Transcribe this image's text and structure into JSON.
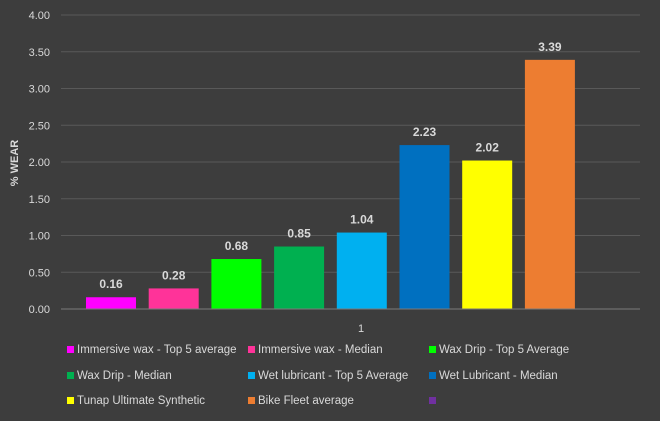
{
  "chart_data": {
    "type": "bar",
    "title": "",
    "ylabel": "% WEAR",
    "xlabel": "",
    "categories": [
      "1"
    ],
    "ylim": [
      0,
      4
    ],
    "y_ticks": [
      "0.00",
      "0.50",
      "1.00",
      "1.50",
      "2.00",
      "2.50",
      "3.00",
      "3.50",
      "4.00"
    ],
    "grid": true,
    "legend_position": "bottom",
    "series": [
      {
        "name": "Immersive wax - Top 5 average",
        "values": [
          0.16
        ],
        "label": "0.16",
        "color": "#ff00ff"
      },
      {
        "name": "Immersive wax - Median",
        "values": [
          0.28
        ],
        "label": "0.28",
        "color": "#ff3399"
      },
      {
        "name": "Wax Drip - Top 5 Average",
        "values": [
          0.68
        ],
        "label": "0.68",
        "color": "#00ff00"
      },
      {
        "name": "Wax Drip -  Median",
        "values": [
          0.85
        ],
        "label": "0.85",
        "color": "#00b050"
      },
      {
        "name": "Wet lubricant - Top 5 Average",
        "values": [
          1.04
        ],
        "label": "1.04",
        "color": "#00b0f0"
      },
      {
        "name": "Wet Lubricant - Median",
        "values": [
          2.23
        ],
        "label": "2.23",
        "color": "#0070c0"
      },
      {
        "name": "Tunap Ultimate Synthetic",
        "values": [
          2.02
        ],
        "label": "2.02",
        "color": "#ffff00"
      },
      {
        "name": "Bike Fleet average",
        "values": [
          3.39
        ],
        "label": "3.39",
        "color": "#ed7d31"
      }
    ],
    "legend_extra_swatch_color": "#7030a0"
  }
}
